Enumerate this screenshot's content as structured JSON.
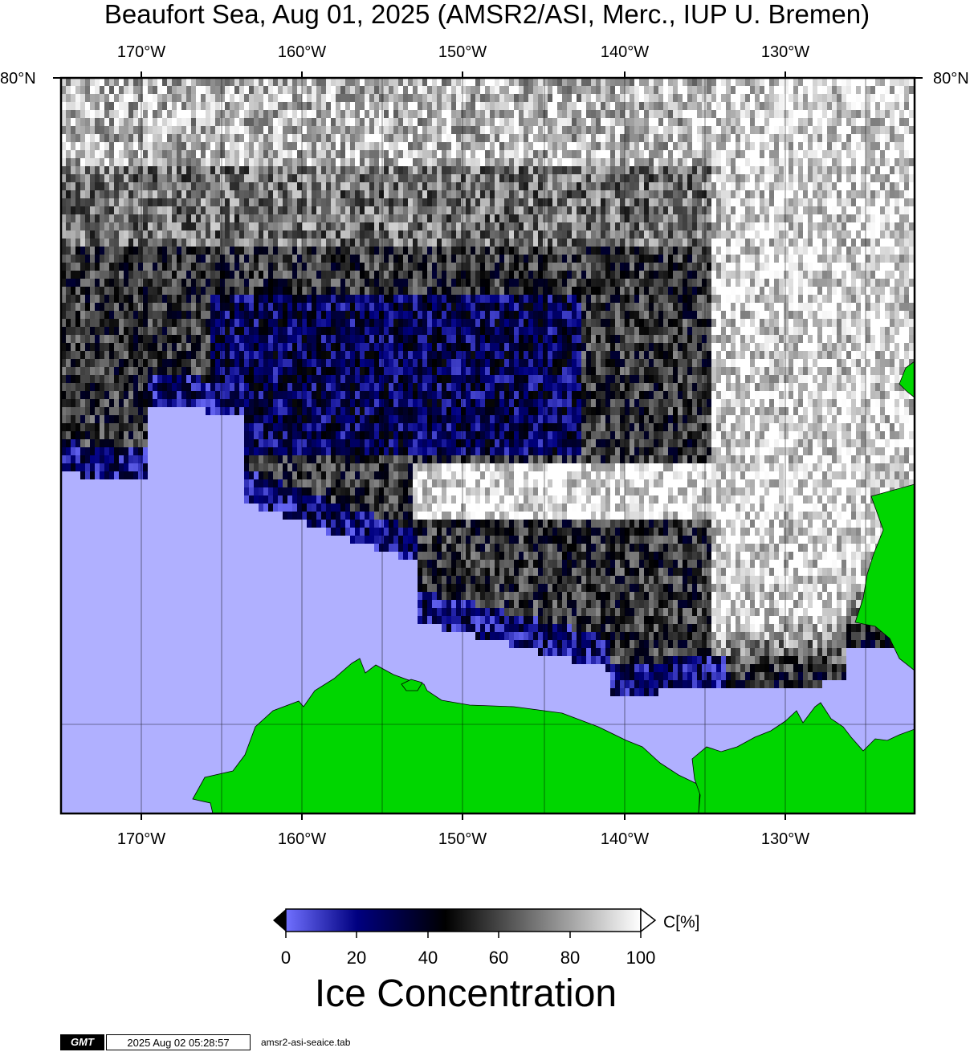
{
  "title": "Beaufort Sea, Aug 01, 2025 (AMSR2/ASI, Merc., IUP U. Bremen)",
  "map": {
    "projection": "Merc.",
    "region": "Beaufort Sea",
    "lon_labels": [
      "170°W",
      "160°W",
      "150°W",
      "140°W",
      "130°W"
    ],
    "lat_labels": {
      "left": "80°N",
      "right": "80°N"
    },
    "colors": {
      "open_water": "#b0b0ff",
      "land": "#00d600",
      "grid": "#000000",
      "frame": "#000000"
    }
  },
  "colorbar": {
    "unit_label": "C[%]",
    "ticks": [
      "0",
      "20",
      "40",
      "60",
      "80",
      "100"
    ],
    "range": [
      0,
      100
    ],
    "stops": [
      {
        "value": 0,
        "color": "#7070ff"
      },
      {
        "value": 20,
        "color": "#000080"
      },
      {
        "value": 45,
        "color": "#000000"
      },
      {
        "value": 100,
        "color": "#ffffff"
      }
    ]
  },
  "colorbar_title": "Ice Concentration",
  "footer": {
    "logo": "GMT",
    "timestamp": "2025 Aug 02 05:28:57",
    "command": "amsr2-asi-seaice.tab"
  }
}
